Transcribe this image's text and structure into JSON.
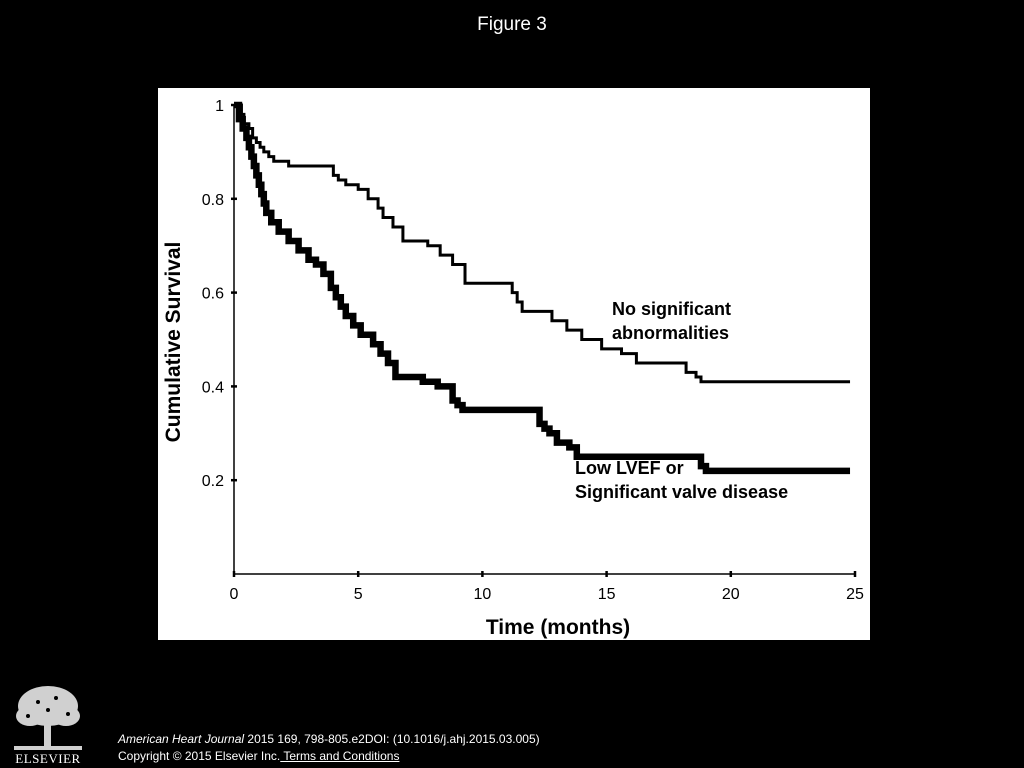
{
  "slide": {
    "title": "Figure 3"
  },
  "colors": {
    "background": "#000000",
    "panel": "#ffffff",
    "ink": "#000000",
    "footer_text": "#ffffff"
  },
  "chart_data": {
    "type": "line",
    "step": true,
    "title": "",
    "xlabel": "Time (months)",
    "ylabel": "Cumulative Survival",
    "xlim": [
      0,
      25
    ],
    "ylim": [
      0,
      1
    ],
    "xticks": [
      0,
      5,
      10,
      15,
      20,
      25
    ],
    "yticks": [
      0.2,
      0.4,
      0.6,
      0.8,
      1
    ],
    "xtick_labels": [
      "0",
      "5",
      "10",
      "15",
      "20",
      "25"
    ],
    "ytick_labels": [
      "0.2",
      "0.4",
      "0.6",
      "0.8",
      "1"
    ],
    "grid": false,
    "legend": "none",
    "series": [
      {
        "label_lines": [
          "No significant",
          "abnormalities"
        ],
        "line_style": "thin",
        "color": "#000000",
        "x": [
          0,
          0.3,
          0.4,
          0.6,
          0.75,
          0.9,
          1.05,
          1.2,
          1.4,
          1.6,
          2.2,
          4.0,
          4.2,
          4.5,
          5.0,
          5.4,
          5.8,
          6.0,
          6.4,
          6.8,
          7.8,
          8.3,
          8.8,
          9.3,
          11.2,
          11.4,
          11.6,
          12.8,
          13.4,
          14.0,
          14.8,
          15.6,
          16.2,
          18.2,
          18.6,
          18.8,
          24.8
        ],
        "y": [
          1.0,
          0.98,
          0.96,
          0.95,
          0.93,
          0.92,
          0.91,
          0.9,
          0.89,
          0.88,
          0.87,
          0.85,
          0.84,
          0.83,
          0.82,
          0.8,
          0.78,
          0.76,
          0.74,
          0.71,
          0.7,
          0.68,
          0.66,
          0.62,
          0.6,
          0.58,
          0.56,
          0.54,
          0.52,
          0.5,
          0.48,
          0.47,
          0.45,
          0.43,
          0.42,
          0.41,
          0.41
        ]
      },
      {
        "label_lines": [
          "Low LVEF or",
          "Significant valve disease"
        ],
        "line_style": "thick",
        "color": "#000000",
        "x": [
          0,
          0.2,
          0.35,
          0.5,
          0.6,
          0.7,
          0.8,
          0.9,
          1.0,
          1.1,
          1.2,
          1.3,
          1.5,
          1.8,
          2.2,
          2.6,
          3.0,
          3.3,
          3.6,
          3.9,
          4.1,
          4.3,
          4.5,
          4.8,
          5.1,
          5.6,
          5.9,
          6.2,
          6.5,
          7.6,
          8.2,
          8.8,
          9.0,
          9.2,
          12.3,
          12.5,
          12.7,
          13.0,
          13.5,
          13.8,
          18.8,
          19.0,
          24.8
        ],
        "y": [
          1.0,
          0.97,
          0.95,
          0.93,
          0.91,
          0.89,
          0.87,
          0.85,
          0.83,
          0.81,
          0.79,
          0.77,
          0.75,
          0.73,
          0.71,
          0.69,
          0.67,
          0.66,
          0.64,
          0.61,
          0.59,
          0.57,
          0.55,
          0.53,
          0.51,
          0.49,
          0.47,
          0.45,
          0.42,
          0.41,
          0.4,
          0.37,
          0.36,
          0.35,
          0.32,
          0.31,
          0.3,
          0.28,
          0.27,
          0.25,
          0.23,
          0.22,
          0.22
        ]
      }
    ]
  },
  "footer": {
    "logo_text": "ELSEVIER",
    "citation_journal": "American Heart Journal",
    "citation_rest": " 2015 169, 798-805.e2DOI: (10.1016/j.ahj.2015.03.005)",
    "copyright": "Copyright © 2015 Elsevier Inc.",
    "terms_link": " Terms and Conditions"
  }
}
